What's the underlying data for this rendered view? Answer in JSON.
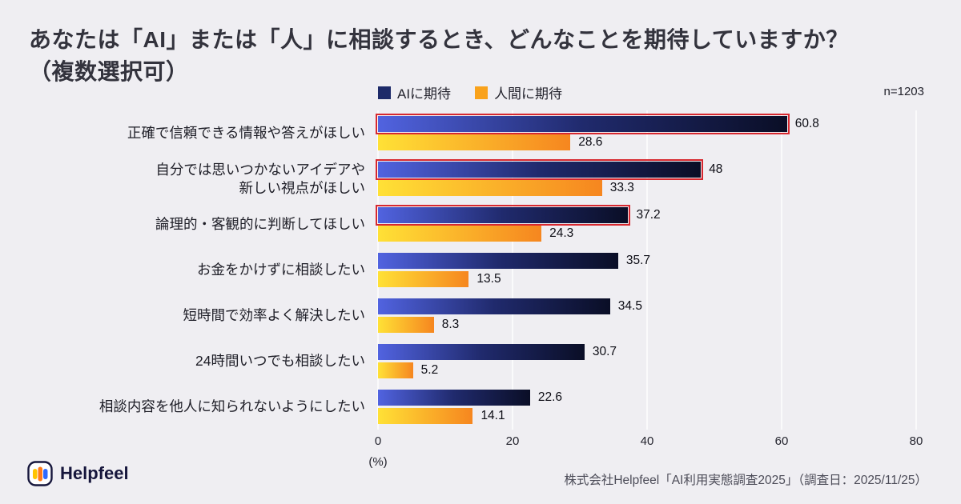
{
  "header": {
    "title_line1": "あなたは「AI」または「人」に相談するとき、どんなことを期待していますか？",
    "title_line2": "（複数選択可）",
    "sample_size": "n=1203"
  },
  "legend": {
    "items": [
      {
        "label": "AIに期待",
        "color": "#1d2a69"
      },
      {
        "label": "人間に期待",
        "color": "#f9a21b"
      }
    ]
  },
  "chart_data": {
    "type": "bar",
    "orientation": "horizontal",
    "categories": [
      "正確で信頼できる情報や答えがほしい",
      "自分では思いつかないアイデアや\n新しい視点がほしい",
      "論理的・客観的に判断してほしい",
      "お金をかけずに相談したい",
      "短時間で効率よく解決したい",
      "24時間いつでも相談したい",
      "相談内容を他人に知られないようにしたい"
    ],
    "series": [
      {
        "name": "AIに期待",
        "values": [
          60.8,
          48,
          37.2,
          35.7,
          34.5,
          30.7,
          22.6
        ],
        "gradient": [
          "#5163e0",
          "#202a6d",
          "#0a0e26"
        ],
        "highlighted_indices": [
          0,
          1,
          2
        ]
      },
      {
        "name": "人間に期待",
        "values": [
          28.6,
          33.3,
          24.3,
          13.5,
          8.3,
          5.2,
          14.1
        ],
        "gradient": [
          "#ffe136",
          "#f6861f"
        ],
        "highlighted_indices": []
      }
    ],
    "xlim": [
      0,
      80
    ],
    "ticks": [
      0,
      20,
      40,
      60,
      80
    ],
    "x_unit": "(%)",
    "highlight_color": "#d7282f",
    "grid": true,
    "legend_position": "top"
  },
  "footer": {
    "logo_text": "Helpfeel",
    "source": "株式会社Helpfeel「AI利用実態調査2025」（調査日：2025/11/25）"
  }
}
